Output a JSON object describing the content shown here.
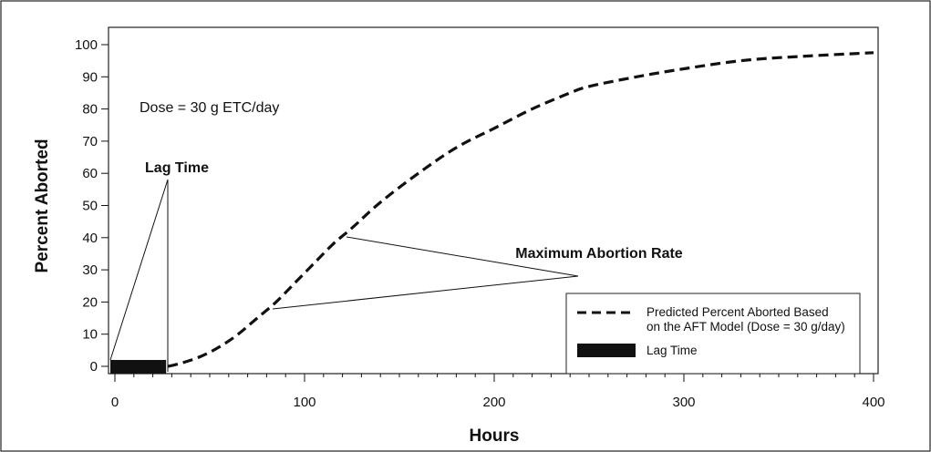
{
  "chart_data": {
    "type": "line",
    "xlabel": "Hours",
    "ylabel": "Percent Aborted",
    "xlim": [
      0,
      400
    ],
    "ylim": [
      0,
      100
    ],
    "xticks": [
      0,
      100,
      200,
      300,
      400
    ],
    "yticks": [
      0,
      10,
      20,
      30,
      40,
      50,
      60,
      70,
      80,
      90,
      100
    ],
    "grid": false,
    "legend_position": "bottom-right",
    "series": [
      {
        "name": "Predicted Percent Aborted Based on the AFT Model (Dose = 30 g/day)",
        "style": "dashed",
        "color": "#111111",
        "x": [
          28,
          35,
          45,
          55,
          65,
          75,
          85,
          95,
          105,
          115,
          125,
          140,
          160,
          180,
          200,
          220,
          240,
          250,
          275,
          300,
          330,
          360,
          400
        ],
        "y": [
          0,
          1,
          3,
          6,
          10,
          15,
          20,
          26,
          32,
          38,
          43,
          51,
          60,
          68,
          74,
          80,
          85,
          87,
          90,
          92.5,
          95,
          96.3,
          97.5
        ]
      },
      {
        "name": "Lag Time",
        "style": "bar",
        "color": "#111111",
        "x_start": 0,
        "x_end": 27,
        "y": 0
      }
    ],
    "annotations": {
      "dose": "Dose = 30 g ETC/day",
      "lag_time": "Lag Time",
      "max_rate": "Maximum Abortion Rate"
    },
    "legend": {
      "line1": "Predicted Percent Aborted Based",
      "line2": "on the AFT Model (Dose = 30 g/day)",
      "lag": "Lag Time"
    },
    "colors": {
      "ink": "#111111",
      "frame": "#222222",
      "background": "#ffffff"
    }
  }
}
